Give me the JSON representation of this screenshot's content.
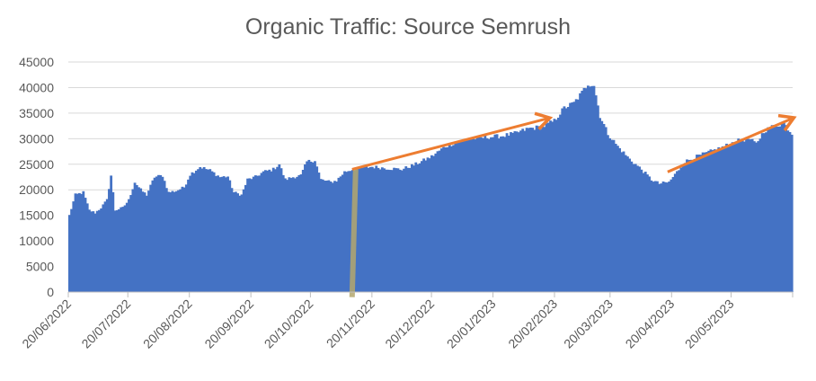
{
  "chart_data": {
    "type": "bar",
    "title": "Organic Traffic: Source Semrush",
    "xlabel": "",
    "ylabel": "",
    "ylim": [
      0,
      45000
    ],
    "yticks": [
      0,
      5000,
      10000,
      15000,
      20000,
      25000,
      30000,
      35000,
      40000,
      45000
    ],
    "grid": true,
    "legend": "none",
    "x_start": "20/06/2022",
    "x_end": "20/06/2023",
    "xticks": [
      "20/06/2022",
      "20/07/2022",
      "20/08/2022",
      "20/09/2022",
      "20/10/2022",
      "20/11/2022",
      "20/12/2022",
      "20/01/2023",
      "20/02/2023",
      "20/03/2023",
      "20/04/2023",
      "20/05/2023"
    ],
    "series": [
      {
        "color": "#4472c4",
        "anchors": [
          [
            "20/06/2022",
            15000
          ],
          [
            "23/06/2022",
            19000
          ],
          [
            "27/06/2022",
            19500
          ],
          [
            "30/06/2022",
            16000
          ],
          [
            "03/07/2022",
            15500
          ],
          [
            "06/07/2022",
            16500
          ],
          [
            "09/07/2022",
            18000
          ],
          [
            "11/07/2022",
            22800
          ],
          [
            "13/07/2022",
            16000
          ],
          [
            "17/07/2022",
            16500
          ],
          [
            "20/07/2022",
            18000
          ],
          [
            "23/07/2022",
            21500
          ],
          [
            "26/07/2022",
            20000
          ],
          [
            "29/07/2022",
            19000
          ],
          [
            "02/08/2022",
            22500
          ],
          [
            "06/08/2022",
            22800
          ],
          [
            "09/08/2022",
            19500
          ],
          [
            "13/08/2022",
            19800
          ],
          [
            "17/08/2022",
            20500
          ],
          [
            "20/08/2022",
            23000
          ],
          [
            "25/08/2022",
            24500
          ],
          [
            "30/08/2022",
            23800
          ],
          [
            "04/09/2022",
            22500
          ],
          [
            "08/09/2022",
            22600
          ],
          [
            "11/09/2022",
            19500
          ],
          [
            "15/09/2022",
            19000
          ],
          [
            "18/09/2022",
            22000
          ],
          [
            "22/09/2022",
            22500
          ],
          [
            "26/09/2022",
            23500
          ],
          [
            "01/10/2022",
            24000
          ],
          [
            "04/10/2022",
            25000
          ],
          [
            "07/10/2022",
            22000
          ],
          [
            "11/10/2022",
            22500
          ],
          [
            "15/10/2022",
            22800
          ],
          [
            "18/10/2022",
            25500
          ],
          [
            "22/10/2022",
            25800
          ],
          [
            "25/10/2022",
            22000
          ],
          [
            "30/10/2022",
            21500
          ],
          [
            "02/11/2022",
            21800
          ],
          [
            "06/11/2022",
            23500
          ],
          [
            "10/11/2022",
            24000
          ],
          [
            "15/11/2022",
            24300
          ],
          [
            "20/11/2022",
            24500
          ],
          [
            "28/11/2022",
            24200
          ],
          [
            "05/12/2022",
            24000
          ],
          [
            "12/12/2022",
            25000
          ],
          [
            "20/12/2022",
            26500
          ],
          [
            "27/12/2022",
            28500
          ],
          [
            "03/01/2023",
            29500
          ],
          [
            "10/01/2023",
            30000
          ],
          [
            "17/01/2023",
            30300
          ],
          [
            "24/01/2023",
            30500
          ],
          [
            "31/01/2023",
            31000
          ],
          [
            "07/02/2023",
            32000
          ],
          [
            "14/02/2023",
            32300
          ],
          [
            "20/02/2023",
            33500
          ],
          [
            "25/02/2023",
            36000
          ],
          [
            "02/03/2023",
            37000
          ],
          [
            "06/03/2023",
            39000
          ],
          [
            "09/03/2023",
            40800
          ],
          [
            "12/03/2023",
            40500
          ],
          [
            "15/03/2023",
            34500
          ],
          [
            "19/03/2023",
            31000
          ],
          [
            "24/03/2023",
            28500
          ],
          [
            "30/03/2023",
            26000
          ],
          [
            "05/04/2023",
            24000
          ],
          [
            "10/04/2023",
            22000
          ],
          [
            "14/04/2023",
            21200
          ],
          [
            "19/04/2023",
            21500
          ],
          [
            "23/04/2023",
            23500
          ],
          [
            "27/04/2023",
            25500
          ],
          [
            "03/05/2023",
            26500
          ],
          [
            "10/05/2023",
            27500
          ],
          [
            "17/05/2023",
            28500
          ],
          [
            "23/05/2023",
            29500
          ],
          [
            "29/05/2023",
            30000
          ],
          [
            "02/06/2023",
            29000
          ],
          [
            "06/06/2023",
            31500
          ],
          [
            "11/06/2023",
            32500
          ],
          [
            "16/06/2023",
            33000
          ],
          [
            "20/06/2023",
            31000
          ]
        ]
      }
    ],
    "annotations": [
      {
        "kind": "vertical-line",
        "at": "10/11/2022",
        "from": -1000,
        "to": 24000,
        "color": "#b4a86e"
      },
      {
        "kind": "arrow",
        "from": [
          "10/11/2022",
          24000
        ],
        "to": [
          "17/02/2023",
          34000
        ],
        "color": "#ed7d31"
      },
      {
        "kind": "arrow",
        "from": [
          "18/04/2023",
          23500
        ],
        "to": [
          "20/06/2023",
          34000
        ],
        "color": "#ed7d31"
      }
    ]
  }
}
